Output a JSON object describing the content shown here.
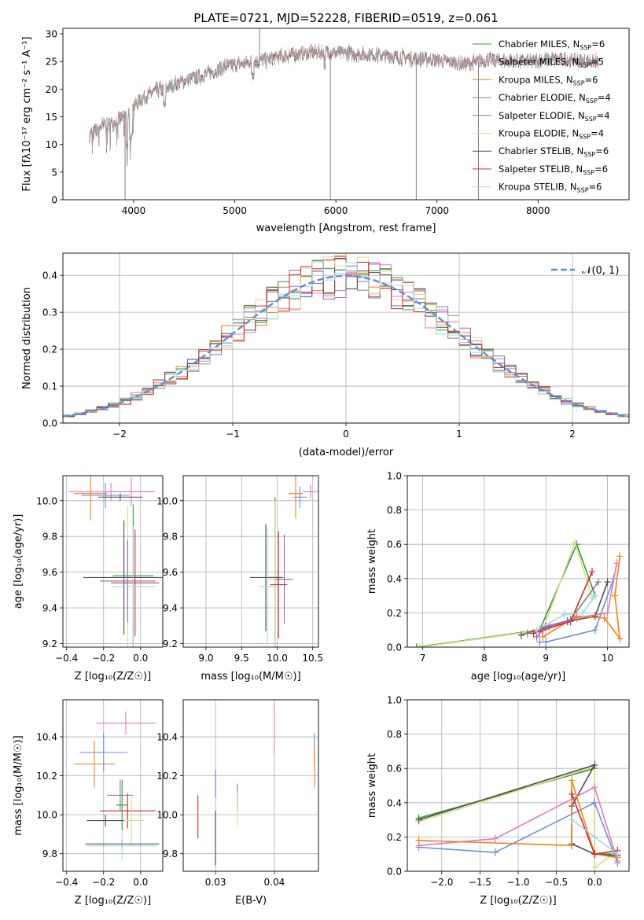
{
  "colors": {
    "chabrier_miles": "#2ca02c",
    "salpeter_miles": "#e377c2",
    "kroupa_miles": "#ff7f0e",
    "chabrier_elodie": "#7f7f7f",
    "salpeter_elodie": "#9467bd",
    "kroupa_elodie": "#dbdb8d",
    "chabrier_stelib": "#505050",
    "salpeter_stelib": "#d62728",
    "kroupa_stelib": "#9edae5",
    "normal_curve": "#5b8fd6",
    "grid": "#b0b0b0"
  },
  "chart_data": [
    {
      "id": "spectrum",
      "type": "line",
      "title": "PLATE=0721, MJD=52228, FIBERID=0519, z=0.061",
      "xlabel": "wavelength [Angstrom, rest frame]",
      "ylabel": "Flux [fλ10⁻¹⁷ erg cm⁻² s⁻¹ A⁻¹]",
      "xlim": [
        3300,
        8900
      ],
      "ylim": [
        0,
        31
      ],
      "xticks": [
        4000,
        5000,
        6000,
        7000,
        8000
      ],
      "yticks": [
        0,
        5,
        10,
        15,
        20,
        25,
        30
      ],
      "grid": false,
      "legend_position": "right",
      "legend": [
        {
          "label": "Chabrier MILES, N",
          "sub": "SSP",
          "suffix": "=6",
          "color": "#2ca02c"
        },
        {
          "label": "Salpeter MILES, N",
          "sub": "SSP",
          "suffix": "=5",
          "color": "#e377c2"
        },
        {
          "label": "Kroupa MILES, N",
          "sub": "SSP",
          "suffix": "=6",
          "color": "#ff7f0e"
        },
        {
          "label": "Chabrier ELODIE, N",
          "sub": "SSP",
          "suffix": "=4",
          "color": "#7f7f7f"
        },
        {
          "label": "Salpeter ELODIE, N",
          "sub": "SSP",
          "suffix": "=4",
          "color": "#9467bd"
        },
        {
          "label": "Kroupa ELODIE, N",
          "sub": "SSP",
          "suffix": "=4",
          "color": "#dbdb8d"
        },
        {
          "label": "Chabrier STELIB, N",
          "sub": "SSP",
          "suffix": "=6",
          "color": "#505050"
        },
        {
          "label": "Salpeter STELIB, N",
          "sub": "SSP",
          "suffix": "=6",
          "color": "#d62728"
        },
        {
          "label": "Kroupa STELIB, N",
          "sub": "SSP",
          "suffix": "=6",
          "color": "#9edae5"
        }
      ],
      "continuum": [
        [
          3560,
          11.5
        ],
        [
          3700,
          13.5
        ],
        [
          3800,
          14.0
        ],
        [
          3900,
          15.0
        ],
        [
          4000,
          17.0
        ],
        [
          4100,
          18.5
        ],
        [
          4200,
          19.5
        ],
        [
          4300,
          20.0
        ],
        [
          4500,
          21.5
        ],
        [
          4700,
          22.5
        ],
        [
          4900,
          24.0
        ],
        [
          5100,
          24.7
        ],
        [
          5300,
          25.3
        ],
        [
          5500,
          26.0
        ],
        [
          5700,
          26.5
        ],
        [
          5900,
          26.8
        ],
        [
          6100,
          26.5
        ],
        [
          6300,
          26.3
        ],
        [
          6500,
          26.0
        ],
        [
          6700,
          25.7
        ],
        [
          6900,
          25.5
        ],
        [
          7100,
          25.0
        ],
        [
          7300,
          24.5
        ],
        [
          7500,
          25.3
        ],
        [
          7700,
          25.0
        ],
        [
          7900,
          25.0
        ],
        [
          8100,
          25.4
        ],
        [
          8300,
          25.3
        ],
        [
          8500,
          25.0
        ],
        [
          8600,
          24.8
        ]
      ],
      "spectrum_range": [
        3560,
        8600
      ],
      "spikes": [
        {
          "x": 3915,
          "y": 0
        },
        {
          "x": 5245,
          "y": 31
        },
        {
          "x": 5945,
          "y": 0
        },
        {
          "x": 6795,
          "y": 0
        },
        {
          "x": 7410,
          "y": 0
        }
      ]
    },
    {
      "id": "residuals",
      "type": "step",
      "xlabel": "(data-model)/error",
      "ylabel": "Normed distribution",
      "xlim": [
        -2.5,
        2.5
      ],
      "ylim": [
        0,
        0.46
      ],
      "xticks": [
        -2,
        -1,
        0,
        1,
        2
      ],
      "yticks": [
        0.0,
        0.1,
        0.2,
        0.3,
        0.4
      ],
      "grid": true,
      "legend_position": "top-right",
      "curve_label": "𝒩(0, 1)",
      "bin_width": 0.1,
      "normal": {
        "mean": 0,
        "sd": 1
      }
    },
    {
      "id": "age_vs_Z",
      "type": "errorbar",
      "xlabel": "Z [log₁₀(Z/Z☉)]",
      "ylabel": "age  [log₁₀(age/yr)]",
      "xlim": [
        -0.42,
        0.12
      ],
      "ylim": [
        9.18,
        10.14
      ],
      "xticks": [
        -0.4,
        -0.2,
        0.0
      ],
      "yticks": [
        9.2,
        9.4,
        9.6,
        9.8,
        10.0
      ],
      "grid": true,
      "points": [
        {
          "x": -0.16,
          "y": 10.05,
          "xerr": 0.23,
          "yerr": 0.05,
          "color": "#e377c2"
        },
        {
          "x": -0.05,
          "y": 10.05,
          "xerr": 0.13,
          "yerr": 0.08,
          "color": "#e377c2"
        },
        {
          "x": -0.27,
          "y": 10.04,
          "xerr": 0.09,
          "yerr": 0.15,
          "color": "#ff7f0e"
        },
        {
          "x": -0.19,
          "y": 10.03,
          "xerr": 0.13,
          "yerr": 0.07,
          "color": "#6a8fd8"
        },
        {
          "x": -0.11,
          "y": 10.02,
          "xerr": 0.12,
          "yerr": 0.02,
          "color": "#505050"
        },
        {
          "x": -0.04,
          "y": 9.58,
          "xerr": 0.11,
          "yerr": 0.4,
          "color": "#2ca02c"
        },
        {
          "x": -0.07,
          "y": 9.57,
          "xerr": 0.1,
          "yerr": 0.4,
          "color": "#dbdb8d"
        },
        {
          "x": -0.09,
          "y": 9.57,
          "xerr": 0.22,
          "yerr": 0.32,
          "color": "#505050"
        },
        {
          "x": -0.07,
          "y": 9.55,
          "xerr": 0.15,
          "yerr": 0.23,
          "color": "#9467bd"
        },
        {
          "x": -0.03,
          "y": 9.54,
          "xerr": 0.13,
          "yerr": 0.3,
          "color": "#d62728"
        },
        {
          "x": -0.04,
          "y": 9.52,
          "xerr": 0.12,
          "yerr": 0.34,
          "color": "#9edae5"
        }
      ]
    },
    {
      "id": "age_vs_mass",
      "type": "errorbar",
      "xlabel": "mass [log₁₀(M/M☉)]",
      "ylabel": "",
      "xlim": [
        8.68,
        10.58
      ],
      "ylim": [
        9.18,
        10.14
      ],
      "xticks": [
        9.0,
        9.5,
        10.0,
        10.5
      ],
      "yticks": [
        9.2,
        9.4,
        9.6,
        9.8,
        10.0
      ],
      "grid": true,
      "points": [
        {
          "x": 10.47,
          "y": 10.05,
          "xerr": 0.11,
          "yerr": 0.04,
          "color": "#e377c2"
        },
        {
          "x": 10.26,
          "y": 10.04,
          "xerr": 0.1,
          "yerr": 0.14,
          "color": "#ff7f0e"
        },
        {
          "x": 10.32,
          "y": 10.02,
          "xerr": 0.1,
          "yerr": 0.06,
          "color": "#6a8fd8"
        },
        {
          "x": 9.97,
          "y": 9.57,
          "xerr": 0.12,
          "yerr": 0.45,
          "color": "#2ca02c"
        },
        {
          "x": 9.97,
          "y": 9.56,
          "xerr": 0.1,
          "yerr": 0.44,
          "color": "#dbdb8d"
        },
        {
          "x": 9.84,
          "y": 9.57,
          "xerr": 0.22,
          "yerr": 0.3,
          "color": "#505050"
        },
        {
          "x": 10.1,
          "y": 9.56,
          "xerr": 0.12,
          "yerr": 0.25,
          "color": "#9467bd"
        },
        {
          "x": 10.02,
          "y": 9.53,
          "xerr": 0.12,
          "yerr": 0.3,
          "color": "#d62728"
        },
        {
          "x": 9.86,
          "y": 9.52,
          "xerr": 0.12,
          "yerr": 0.33,
          "color": "#9edae5"
        }
      ]
    },
    {
      "id": "weight_vs_age",
      "type": "line",
      "xlabel": "age  [log₁₀(age/yr)]",
      "ylabel": "mass weight",
      "xlim": [
        6.75,
        10.35
      ],
      "ylim": [
        0,
        1
      ],
      "xticks": [
        7,
        8,
        9,
        10
      ],
      "yticks": [
        0.0,
        0.2,
        0.4,
        0.6,
        0.8,
        1.0
      ],
      "grid": true,
      "series": [
        {
          "color": "#2ca02c",
          "x": [
            6.9,
            8.9,
            9.5,
            9.8
          ],
          "y": [
            0.0,
            0.1,
            0.6,
            0.3
          ]
        },
        {
          "color": "#dbdb8d",
          "x": [
            6.95,
            8.95,
            9.47,
            9.75
          ],
          "y": [
            0.0,
            0.1,
            0.61,
            0.29
          ]
        },
        {
          "color": "#505050",
          "x": [
            8.6,
            9.0,
            9.35,
            9.8,
            10.0
          ],
          "y": [
            0.07,
            0.12,
            0.15,
            0.18,
            0.38
          ]
        },
        {
          "color": "#7f7f7f",
          "x": [
            8.7,
            9.05,
            9.4,
            9.85
          ],
          "y": [
            0.08,
            0.12,
            0.16,
            0.38
          ]
        },
        {
          "color": "#6a8fd8",
          "x": [
            8.9,
            9.0,
            9.8,
            10.1
          ],
          "y": [
            0.03,
            0.03,
            0.1,
            0.4
          ]
        },
        {
          "color": "#e377c2",
          "x": [
            8.9,
            9.5,
            10.0,
            10.15
          ],
          "y": [
            0.09,
            0.17,
            0.2,
            0.49
          ]
        },
        {
          "color": "#ff7f0e",
          "x": [
            8.95,
            9.5,
            9.95,
            10.2,
            10.12,
            10.2
          ],
          "y": [
            0.06,
            0.18,
            0.17,
            0.05,
            0.3,
            0.53
          ]
        },
        {
          "color": "#d62728",
          "x": [
            8.8,
            8.95,
            9.4,
            9.75
          ],
          "y": [
            0.08,
            0.1,
            0.15,
            0.44
          ]
        },
        {
          "color": "#9467bd",
          "x": [
            8.85,
            9.0,
            9.4
          ],
          "y": [
            0.06,
            0.12,
            0.16
          ]
        },
        {
          "color": "#9edae5",
          "x": [
            8.85,
            9.3,
            9.6,
            9.8
          ],
          "y": [
            0.1,
            0.19,
            0.2,
            0.3
          ]
        }
      ]
    },
    {
      "id": "mass_vs_Z",
      "type": "errorbar",
      "xlabel": "Z [log₁₀(Z/Z☉)]",
      "ylabel": "mass [log₁₀(M/M☉)]",
      "xlim": [
        -0.42,
        0.12
      ],
      "ylim": [
        9.71,
        10.59
      ],
      "xticks": [
        -0.4,
        -0.2,
        0.0
      ],
      "yticks": [
        9.8,
        10.0,
        10.2,
        10.4
      ],
      "grid": true,
      "points": [
        {
          "x": -0.08,
          "y": 10.47,
          "xerr": 0.16,
          "yerr": 0.06,
          "color": "#e377c2"
        },
        {
          "x": -0.2,
          "y": 10.32,
          "xerr": 0.13,
          "yerr": 0.1,
          "color": "#6a8fd8"
        },
        {
          "x": -0.25,
          "y": 10.26,
          "xerr": 0.11,
          "yerr": 0.12,
          "color": "#ff7f0e"
        },
        {
          "x": -0.11,
          "y": 10.1,
          "xerr": 0.07,
          "yerr": 0.08,
          "color": "#9467bd"
        },
        {
          "x": -0.1,
          "y": 10.05,
          "xerr": 0.03,
          "yerr": 0.13,
          "color": "#2ca02c"
        },
        {
          "x": -0.07,
          "y": 10.02,
          "xerr": 0.15,
          "yerr": 0.09,
          "color": "#d62728"
        },
        {
          "x": -0.05,
          "y": 9.97,
          "xerr": 0.07,
          "yerr": 0.13,
          "color": "#dbdb8d"
        },
        {
          "x": -0.19,
          "y": 9.97,
          "xerr": 0.1,
          "yerr": 0.03,
          "color": "#505050"
        },
        {
          "x": -0.1,
          "y": 9.85,
          "xerr": 0.2,
          "yerr": 0.02,
          "color": "#505050"
        },
        {
          "x": -0.1,
          "y": 9.84,
          "xerr": 0.19,
          "yerr": 0.07,
          "color": "#9edae5"
        }
      ]
    },
    {
      "id": "mass_vs_ebv",
      "type": "errorbar",
      "xlabel": "E(B-V)",
      "ylabel": "",
      "xlim": [
        0.0245,
        0.0475
      ],
      "ylim": [
        9.71,
        10.59
      ],
      "xticks": [
        0.03,
        0.04
      ],
      "yticks": [
        9.8,
        10.0,
        10.2,
        10.4
      ],
      "grid": true,
      "points": [
        {
          "x": 0.04,
          "y": 10.44,
          "xerr": 0,
          "yerr": 0.13,
          "color": "#e377c2"
        },
        {
          "x": 0.0468,
          "y": 10.34,
          "xerr": 0,
          "yerr": 0.08,
          "color": "#6a8fd8"
        },
        {
          "x": 0.0468,
          "y": 10.25,
          "xerr": 0,
          "yerr": 0.11,
          "color": "#ff7f0e"
        },
        {
          "x": 0.03,
          "y": 10.16,
          "xerr": 0,
          "yerr": 0.07,
          "color": "#9467bd"
        },
        {
          "x": 0.0337,
          "y": 10.09,
          "xerr": 0,
          "yerr": 0.07,
          "color": "#7f7f7f"
        },
        {
          "x": 0.0337,
          "y": 10.03,
          "xerr": 0,
          "yerr": 0.09,
          "color": "#dbdb8d"
        },
        {
          "x": 0.027,
          "y": 9.99,
          "xerr": 0,
          "yerr": 0.11,
          "color": "#d62728"
        },
        {
          "x": 0.03,
          "y": 9.9,
          "xerr": 0,
          "yerr": 0.16,
          "color": "#9edae5"
        },
        {
          "x": 0.03,
          "y": 9.88,
          "xerr": 0,
          "yerr": 0.14,
          "color": "#505050"
        }
      ]
    },
    {
      "id": "weight_vs_Z",
      "type": "line",
      "xlabel": "Z [log₁₀(Z/Z☉)]",
      "ylabel": "mass weight",
      "xlim": [
        -2.45,
        0.45
      ],
      "ylim": [
        0,
        1
      ],
      "xticks": [
        -2.0,
        -1.5,
        -1.0,
        -0.5,
        0.0
      ],
      "yticks": [
        0.0,
        0.2,
        0.4,
        0.6,
        0.8,
        1.0
      ],
      "grid": true,
      "series": [
        {
          "color": "#2ca02c",
          "x": [
            -2.3,
            0.0,
            0.0,
            0.3
          ],
          "y": [
            0.31,
            0.6,
            0.1,
            0.1
          ]
        },
        {
          "color": "#dbdb8d",
          "x": [
            -2.3,
            0.0,
            0.0,
            0.3
          ],
          "y": [
            0.29,
            0.61,
            0.02,
            0.12
          ]
        },
        {
          "color": "#505050",
          "x": [
            -2.3,
            0.0,
            -0.3,
            -0.3,
            0.0,
            0.3
          ],
          "y": [
            0.3,
            0.62,
            0.38,
            0.16,
            0.1,
            0.09
          ]
        },
        {
          "color": "#6a8fd8",
          "x": [
            -2.3,
            -1.3,
            0.0,
            0.3
          ],
          "y": [
            0.14,
            0.11,
            0.4,
            0.05
          ]
        },
        {
          "color": "#e377c2",
          "x": [
            -2.3,
            -1.3,
            0.0,
            0.3
          ],
          "y": [
            0.15,
            0.19,
            0.49,
            0.06
          ]
        },
        {
          "color": "#ff7f0e",
          "x": [
            -2.3,
            -0.3,
            -0.3,
            0.0,
            0.3
          ],
          "y": [
            0.18,
            0.15,
            0.53,
            0.1,
            0.08
          ]
        },
        {
          "color": "#d62728",
          "x": [
            -0.3,
            0.0,
            0.3
          ],
          "y": [
            0.45,
            0.1,
            0.12
          ]
        },
        {
          "color": "#9edae5",
          "x": [
            -0.3,
            0.0,
            0.3
          ],
          "y": [
            0.3,
            0.2,
            0.1
          ]
        }
      ]
    }
  ]
}
